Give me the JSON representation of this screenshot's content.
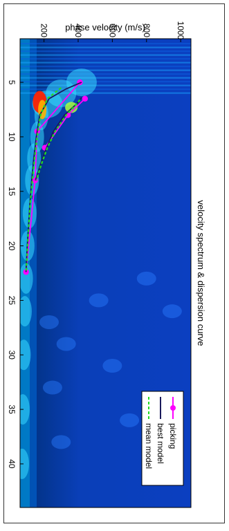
{
  "chart_data": {
    "type": "line",
    "orientation": "rotated-90-clockwise",
    "title": "velocity spectrum & dispersion curve",
    "xlabel": "",
    "ylabel": "phase velocity (m/s)",
    "xlim": [
      1,
      44
    ],
    "ylim": [
      60,
      1060
    ],
    "x_ticks": [
      5,
      10,
      15,
      20,
      25,
      30,
      35,
      40
    ],
    "y_ticks": [
      200,
      400,
      600,
      800,
      1000
    ],
    "background": "velocity spectrum heatmap (jet colormap)",
    "series": [
      {
        "name": "picking",
        "style": "magenta solid line with dot markers",
        "color": "#ff00ff",
        "branches": [
          {
            "x": [
              5,
              9.5,
              14,
              22.4
            ],
            "y": [
              410,
              160,
              148,
              95
            ]
          },
          {
            "x": [
              6.5,
              8,
              11
            ],
            "y": [
              440,
              340,
              205
            ]
          }
        ]
      },
      {
        "name": "best model",
        "style": "dark blue solid line",
        "color": "#1a1a5c",
        "branches": [
          {
            "x": [
              5,
              5.6,
              6.5,
              8,
              10,
              12,
              14,
              16,
              18,
              20,
              22.4
            ],
            "y": [
              420,
              330,
              230,
              175,
              155,
              140,
              128,
              118,
              110,
              102,
              95
            ]
          },
          {
            "x": [
              6.4,
              7,
              8,
              9.5,
              11,
              12.5,
              14
            ],
            "y": [
              420,
              390,
              320,
              255,
              215,
              180,
              150
            ]
          }
        ]
      },
      {
        "name": "mean model",
        "style": "green dashed line",
        "color": "#22dd22",
        "branches": [
          {
            "x": [
              5.5,
              6.5,
              8,
              10,
              12,
              14,
              16,
              18,
              20,
              22.4
            ],
            "y": [
              300,
              220,
              180,
              160,
              145,
              132,
              120,
              112,
              104,
              96
            ]
          },
          {
            "x": [
              6.6,
              7.2,
              8,
              9.5,
              11,
              12.5,
              14
            ],
            "y": [
              410,
              380,
              330,
              265,
              220,
              185,
              155
            ]
          }
        ]
      }
    ],
    "legend_position": "lower-right"
  }
}
